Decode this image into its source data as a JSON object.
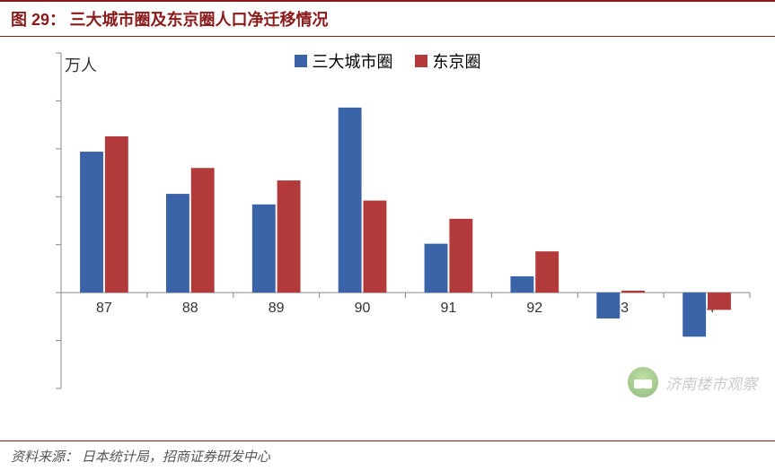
{
  "header": {
    "prefix": "图 29：",
    "title": "三大城市圈及东京圈人口净迁移情况"
  },
  "footer": {
    "label": "资料来源：",
    "source": "日本统计局，招商证券研发中心"
  },
  "watermark": {
    "text": "济南楼市观察"
  },
  "chart": {
    "type": "bar",
    "y_axis_label": "万人",
    "legend": [
      {
        "label": "三大城市圈",
        "color": "#3a63a8"
      },
      {
        "label": "东京圈",
        "color": "#b23a3a"
      }
    ],
    "categories": [
      "87",
      "88",
      "89",
      "90",
      "91",
      "92",
      "93",
      "94"
    ],
    "series": [
      {
        "name": "三大城市圈",
        "color": "#3a63a8",
        "values": [
          14.7,
          10.3,
          9.2,
          19.3,
          5.1,
          1.7,
          -2.7,
          -4.6
        ]
      },
      {
        "name": "东京圈",
        "color": "#b23a3a",
        "values": [
          16.3,
          13.0,
          11.7,
          9.6,
          7.7,
          4.3,
          0.2,
          -1.8
        ]
      }
    ],
    "y_axis": {
      "min": -10,
      "max": 25,
      "step": 5
    },
    "axis_color": "#888888",
    "tick_mark_color": "#888888",
    "background_color": "#ffffff",
    "bar_group_width_ratio": 0.56,
    "bar_gap_ratio": 0.02,
    "label_fontsize": 16,
    "legend_fontsize": 18,
    "title_fontsize": 18
  }
}
